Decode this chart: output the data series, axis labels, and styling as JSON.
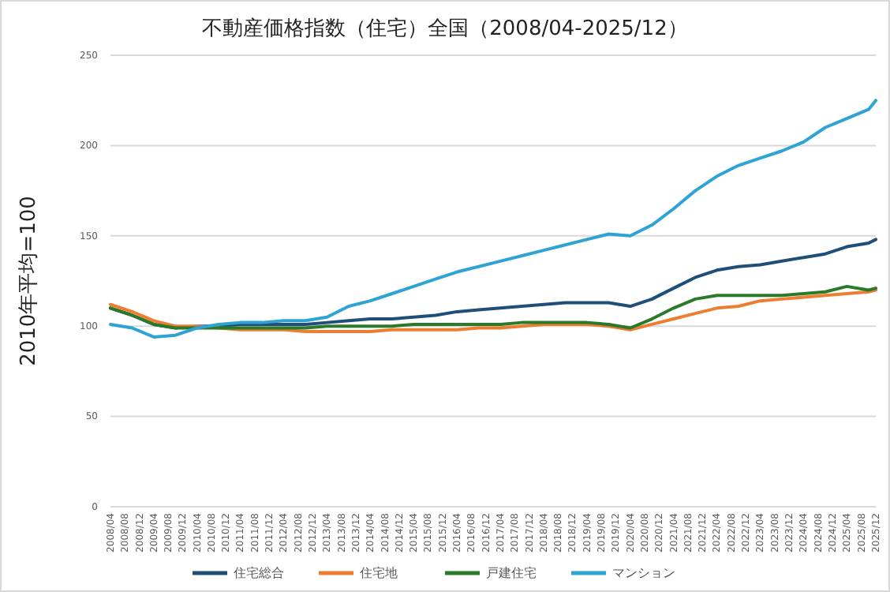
{
  "chart_data": {
    "type": "line",
    "title": "不動産価格指数（住宅）全国（2008/04-2025/12）",
    "ylabel": "2010年平均=100",
    "x": [
      "2008-04",
      "2008-10",
      "2009-04",
      "2009-10",
      "2010-04",
      "2010-10",
      "2011-04",
      "2011-10",
      "2012-04",
      "2012-10",
      "2013-04",
      "2013-10",
      "2014-04",
      "2014-10",
      "2015-04",
      "2015-10",
      "2016-04",
      "2016-10",
      "2017-04",
      "2017-10",
      "2018-04",
      "2018-10",
      "2019-04",
      "2019-10",
      "2020-04",
      "2020-10",
      "2021-04",
      "2021-10",
      "2022-04",
      "2022-10",
      "2023-04",
      "2023-10",
      "2024-04",
      "2024-10",
      "2025-04",
      "2025-10",
      "2025-12"
    ],
    "series": [
      {
        "name": "住宅総合",
        "color": "#1f4e79",
        "values": [
          110,
          106,
          101,
          99,
          100,
          100,
          101,
          101,
          101,
          101,
          102,
          103,
          104,
          104,
          105,
          106,
          108,
          109,
          110,
          111,
          112,
          113,
          113,
          113,
          111,
          115,
          121,
          127,
          131,
          133,
          134,
          136,
          138,
          140,
          144,
          146,
          148
        ]
      },
      {
        "name": "住宅地",
        "color": "#ed7d31",
        "values": [
          112,
          108,
          103,
          100,
          100,
          99,
          98,
          98,
          98,
          97,
          97,
          97,
          97,
          98,
          98,
          98,
          98,
          99,
          99,
          100,
          101,
          101,
          101,
          100,
          98,
          101,
          104,
          107,
          110,
          111,
          114,
          115,
          116,
          117,
          118,
          119,
          120
        ]
      },
      {
        "name": "戸建住宅",
        "color": "#2a7a2a",
        "values": [
          110,
          106,
          101,
          99,
          99,
          99,
          99,
          99,
          99,
          99,
          100,
          100,
          100,
          100,
          101,
          101,
          101,
          101,
          101,
          102,
          102,
          102,
          102,
          101,
          99,
          104,
          110,
          115,
          117,
          117,
          117,
          117,
          118,
          119,
          122,
          120,
          121
        ]
      },
      {
        "name": "マンション",
        "color": "#2ea3d4",
        "values": [
          101,
          99,
          94,
          95,
          99,
          101,
          102,
          102,
          103,
          103,
          105,
          111,
          114,
          118,
          122,
          126,
          130,
          133,
          136,
          139,
          142,
          145,
          148,
          151,
          150,
          156,
          165,
          175,
          183,
          189,
          193,
          197,
          202,
          210,
          215,
          220,
          225
        ]
      }
    ],
    "xlim": [
      "2008-04",
      "2025-12"
    ],
    "xticks": [
      {
        "value": "2008-04",
        "label": "2008/04"
      },
      {
        "value": "2008-08",
        "label": "2008/08"
      },
      {
        "value": "2008-12",
        "label": "2008/12"
      },
      {
        "value": "2009-04",
        "label": "2009/04"
      },
      {
        "value": "2009-08",
        "label": "2009/08"
      },
      {
        "value": "2009-12",
        "label": "2009/12"
      },
      {
        "value": "2010-04",
        "label": "2010/04"
      },
      {
        "value": "2010-08",
        "label": "2010/08"
      },
      {
        "value": "2010-12",
        "label": "2010/12"
      },
      {
        "value": "2011-04",
        "label": "2011/04"
      },
      {
        "value": "2011-08",
        "label": "2011/08"
      },
      {
        "value": "2011-12",
        "label": "2011/12"
      },
      {
        "value": "2012-04",
        "label": "2012/04"
      },
      {
        "value": "2012-08",
        "label": "2012/08"
      },
      {
        "value": "2012-12",
        "label": "2012/12"
      },
      {
        "value": "2013-04",
        "label": "2013/04"
      },
      {
        "value": "2013-08",
        "label": "2013/08"
      },
      {
        "value": "2013-12",
        "label": "2013/12"
      },
      {
        "value": "2014-04",
        "label": "2014/04"
      },
      {
        "value": "2014-08",
        "label": "2014/08"
      },
      {
        "value": "2014-12",
        "label": "2014/12"
      },
      {
        "value": "2015-04",
        "label": "2015/04"
      },
      {
        "value": "2015-08",
        "label": "2015/08"
      },
      {
        "value": "2015-12",
        "label": "2015/12"
      },
      {
        "value": "2016-04",
        "label": "2016/04"
      },
      {
        "value": "2016-08",
        "label": "2016/08"
      },
      {
        "value": "2016-12",
        "label": "2016/12"
      },
      {
        "value": "2017-04",
        "label": "2017/04"
      },
      {
        "value": "2017-08",
        "label": "2017/08"
      },
      {
        "value": "2017-12",
        "label": "2017/12"
      },
      {
        "value": "2018-04",
        "label": "2018/04"
      },
      {
        "value": "2018-08",
        "label": "2018/08"
      },
      {
        "value": "2018-12",
        "label": "2018/12"
      },
      {
        "value": "2019-04",
        "label": "2019/04"
      },
      {
        "value": "2019-08",
        "label": "2019/08"
      },
      {
        "value": "2019-12",
        "label": "2019/12"
      },
      {
        "value": "2020-04",
        "label": "2020/04"
      },
      {
        "value": "2020-08",
        "label": "2020/08"
      },
      {
        "value": "2020-12",
        "label": "2020/12"
      },
      {
        "value": "2021-04",
        "label": "2021/04"
      },
      {
        "value": "2021-08",
        "label": "2021/08"
      },
      {
        "value": "2021-12",
        "label": "2021/12"
      },
      {
        "value": "2022-04",
        "label": "2022/04"
      },
      {
        "value": "2022-08",
        "label": "2022/08"
      },
      {
        "value": "2022-12",
        "label": "2022/12"
      },
      {
        "value": "2023-04",
        "label": "2023/04"
      },
      {
        "value": "2023-08",
        "label": "2023/08"
      },
      {
        "value": "2023-12",
        "label": "2023/12"
      },
      {
        "value": "2024-04",
        "label": "2024/04"
      },
      {
        "value": "2024-08",
        "label": "2024/08"
      },
      {
        "value": "2024-12",
        "label": "2024/12"
      },
      {
        "value": "2025-04",
        "label": "2025/04"
      },
      {
        "value": "2025-08",
        "label": "2025/08"
      },
      {
        "value": "2025-12",
        "label": "2025/12"
      }
    ],
    "ylim": [
      0,
      250
    ],
    "yticks": [
      0,
      50,
      100,
      150,
      200,
      250
    ],
    "grid": "y",
    "legend": "bottom"
  }
}
